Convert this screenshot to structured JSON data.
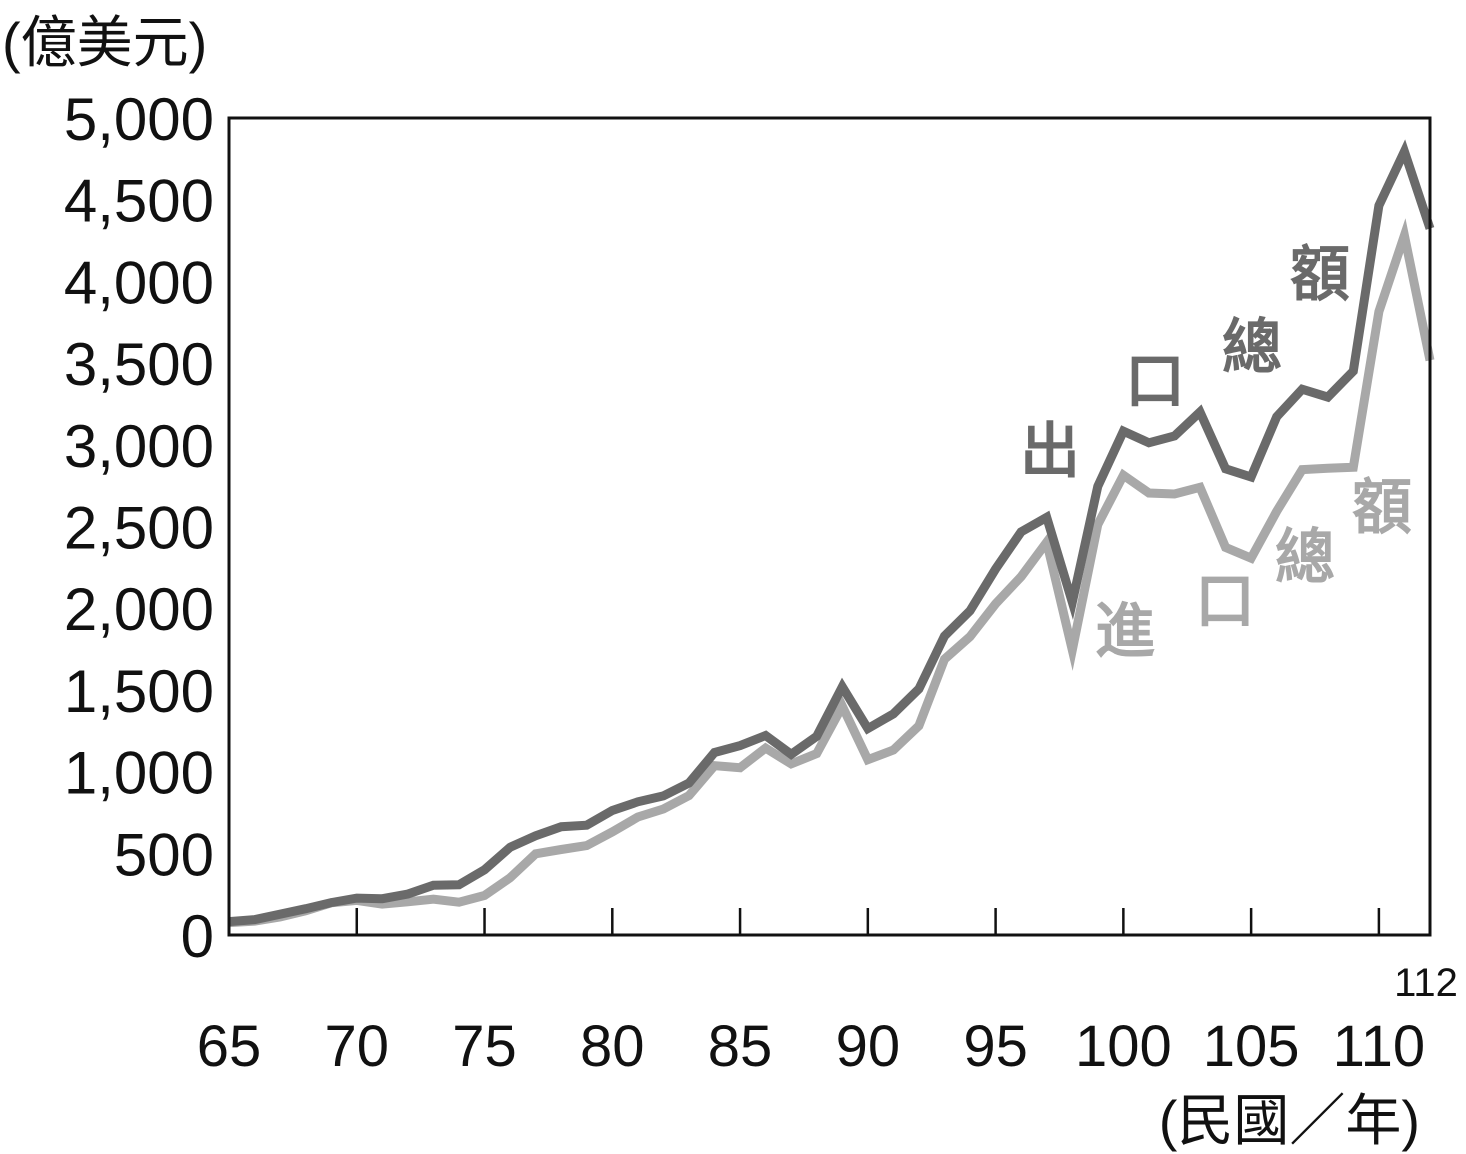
{
  "chart_data": {
    "type": "line",
    "ylabel": "(億美元)",
    "xlabel": "(民國／年)",
    "xlim": [
      65,
      112
    ],
    "ylim": [
      0,
      5000
    ],
    "yticks": [
      {
        "value": 0,
        "label": "0"
      },
      {
        "value": 500,
        "label": "500"
      },
      {
        "value": 1000,
        "label": "1,000"
      },
      {
        "value": 1500,
        "label": "1,500"
      },
      {
        "value": 2000,
        "label": "2,000"
      },
      {
        "value": 2500,
        "label": "2,500"
      },
      {
        "value": 3000,
        "label": "3,000"
      },
      {
        "value": 3500,
        "label": "3,500"
      },
      {
        "value": 4000,
        "label": "4,000"
      },
      {
        "value": 4500,
        "label": "4,500"
      },
      {
        "value": 5000,
        "label": "5,000"
      }
    ],
    "xticks": [
      {
        "value": 65,
        "label": "65"
      },
      {
        "value": 70,
        "label": "70"
      },
      {
        "value": 75,
        "label": "75"
      },
      {
        "value": 80,
        "label": "80"
      },
      {
        "value": 85,
        "label": "85"
      },
      {
        "value": 90,
        "label": "90"
      },
      {
        "value": 95,
        "label": "95"
      },
      {
        "value": 100,
        "label": "100"
      },
      {
        "value": 105,
        "label": "105"
      },
      {
        "value": 110,
        "label": "110"
      }
    ],
    "xtick_end": {
      "value": 112,
      "label": "112"
    },
    "grid": false,
    "legend": "inline labels near lines",
    "x": [
      65,
      66,
      67,
      68,
      69,
      70,
      71,
      72,
      73,
      74,
      75,
      76,
      77,
      78,
      79,
      80,
      81,
      82,
      83,
      84,
      85,
      86,
      87,
      88,
      89,
      90,
      91,
      92,
      93,
      94,
      95,
      96,
      97,
      98,
      99,
      100,
      101,
      102,
      103,
      104,
      105,
      106,
      107,
      108,
      109,
      110,
      111,
      112
    ],
    "series": [
      {
        "name": "出口總額",
        "color": "#6a6a6a",
        "values": [
          82,
          94,
          127,
          161,
          198,
          226,
          222,
          251,
          305,
          307,
          399,
          537,
          607,
          663,
          672,
          762,
          815,
          851,
          930,
          1117,
          1159,
          1221,
          1106,
          1216,
          1519,
          1263,
          1353,
          1506,
          1830,
          1984,
          2240,
          2467,
          2556,
          2037,
          2746,
          3083,
          3012,
          3054,
          3201,
          2853,
          2803,
          3172,
          3340,
          3292,
          3451,
          4464,
          4795,
          4324
        ]
      },
      {
        "name": "進口總額",
        "color": "#a8a8a8",
        "values": [
          76,
          85,
          110,
          148,
          197,
          212,
          189,
          203,
          220,
          201,
          242,
          350,
          497,
          523,
          547,
          631,
          722,
          771,
          853,
          1036,
          1024,
          1144,
          1047,
          1110,
          1400,
          1073,
          1132,
          1280,
          1688,
          1826,
          2027,
          2193,
          2404,
          1744,
          2512,
          2814,
          2705,
          2699,
          2740,
          2372,
          2306,
          2593,
          2848,
          2856,
          2862,
          3815,
          4281,
          3517
        ]
      }
    ]
  }
}
